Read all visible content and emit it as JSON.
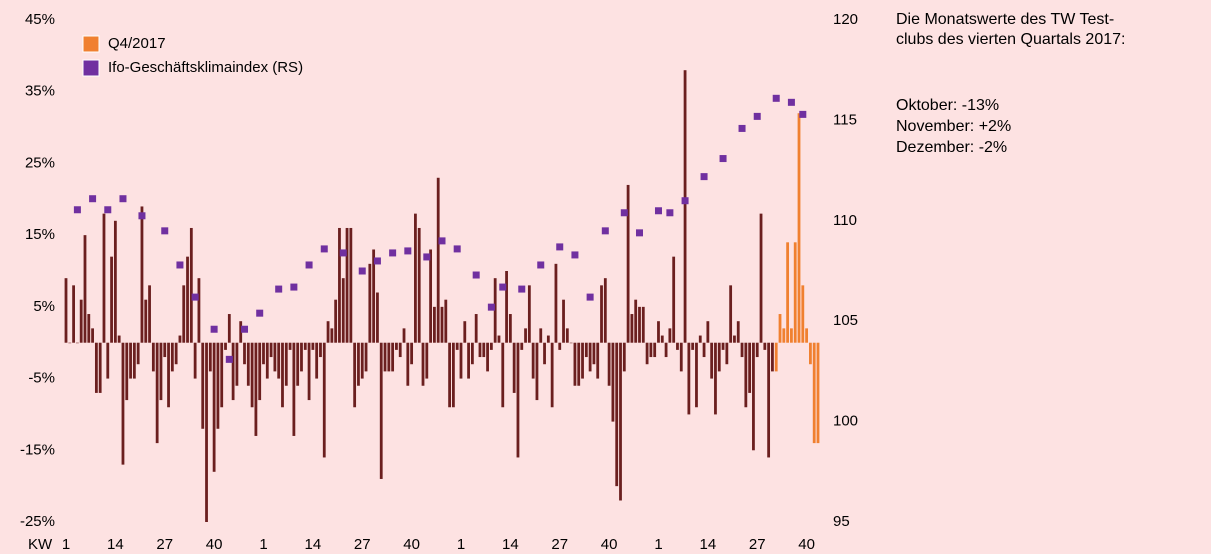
{
  "chart_data": {
    "type": "bar",
    "x_label": "KW",
    "categories": [
      "1",
      null,
      null,
      null,
      null,
      null,
      null,
      null,
      null,
      null,
      null,
      null,
      null,
      "14",
      null,
      null,
      null,
      null,
      null,
      null,
      null,
      null,
      null,
      null,
      null,
      null,
      "27",
      null,
      null,
      null,
      null,
      null,
      null,
      null,
      null,
      null,
      null,
      null,
      null,
      "40",
      null,
      null,
      null,
      null,
      null,
      null,
      null,
      null,
      null,
      null,
      null,
      null,
      "1",
      null,
      null,
      null,
      null,
      null,
      null,
      null,
      null,
      null,
      null,
      null,
      null,
      "14",
      null,
      null,
      null,
      null,
      null,
      null,
      null,
      null,
      null,
      null,
      null,
      null,
      "27",
      null,
      null,
      null,
      null,
      null,
      null,
      null,
      null,
      null,
      null,
      null,
      null,
      "40",
      null,
      null,
      null,
      null,
      null,
      null,
      null,
      null,
      null,
      null,
      null,
      null,
      "1",
      null,
      null,
      null,
      null,
      null,
      null,
      null,
      null,
      null,
      null,
      null,
      null,
      "14",
      null,
      null,
      null,
      null,
      null,
      null,
      null,
      null,
      null,
      null,
      null,
      null,
      "27",
      null,
      null,
      null,
      null,
      null,
      null,
      null,
      null,
      null,
      null,
      null,
      null,
      "40",
      null,
      null,
      null,
      null,
      null,
      null,
      null,
      null,
      null,
      null,
      null,
      null,
      "1",
      null,
      null,
      null,
      null,
      null,
      null,
      null,
      null,
      null,
      null,
      null,
      null,
      "14",
      null,
      null,
      null,
      null,
      null,
      null,
      null,
      null,
      null,
      null,
      null,
      null,
      "27",
      null,
      null,
      null,
      null,
      null,
      null,
      null,
      null,
      null,
      null,
      null,
      null,
      "40",
      null,
      null,
      null
    ],
    "series": [
      {
        "type": "bar",
        "color": "#6b1f1f",
        "values": [
          9,
          0,
          8,
          0,
          6,
          15,
          4,
          2,
          -7,
          -7,
          18,
          -5,
          12,
          17,
          1,
          -17,
          -8,
          -5,
          -5,
          -3,
          19,
          6,
          8,
          -4,
          -14,
          -8,
          -2,
          -9,
          -4,
          -3,
          1,
          8,
          12,
          16,
          -5,
          9,
          -12,
          -25,
          -4,
          -18,
          -12,
          -9,
          -1,
          4,
          -8,
          -6,
          3,
          -3,
          -6,
          -9,
          -13,
          -8,
          -3,
          -5,
          -2,
          -4,
          -5,
          -9,
          -6,
          -1,
          -13,
          -6,
          -4,
          -1,
          -8,
          -1,
          -5,
          -2,
          -16,
          3,
          2,
          6,
          16,
          9,
          16,
          16,
          -9,
          -6,
          -5,
          -4,
          11,
          13,
          7,
          -19,
          -4,
          -4,
          -4,
          -1,
          -2,
          2,
          -6,
          -3,
          18,
          16,
          -6,
          -5,
          13,
          5,
          23,
          5,
          6,
          -9,
          -9,
          -1,
          -5,
          3,
          -5,
          -3,
          4,
          -2,
          -2,
          -4,
          -1,
          9,
          1,
          -9,
          10,
          4,
          -7,
          -16,
          -1,
          2,
          8,
          -5,
          -8,
          2,
          -3,
          1,
          -9,
          11,
          -1,
          6,
          2,
          0,
          -6,
          -6,
          -5,
          -2,
          -4,
          -3,
          -5,
          8,
          9,
          -6,
          -11,
          -20,
          -22,
          -4,
          22,
          4,
          6,
          5,
          5,
          -3,
          -2,
          -2,
          3,
          1,
          -2,
          2,
          12,
          -1,
          -4,
          38,
          -10,
          -1,
          -9,
          1,
          -2,
          3,
          -5,
          -10,
          -4,
          -1,
          -3,
          8,
          1,
          3,
          -2,
          -9,
          -7,
          -15,
          -2,
          18,
          -1,
          -16,
          -4,
          null,
          null,
          null,
          null,
          null,
          null,
          null,
          null,
          null,
          null,
          null,
          null
        ]
      },
      {
        "type": "bar",
        "name": "Q4/2017",
        "color": "#f08030",
        "values": [
          null,
          null,
          null,
          null,
          null,
          null,
          null,
          null,
          null,
          null,
          null,
          null,
          null,
          null,
          null,
          null,
          null,
          null,
          null,
          null,
          null,
          null,
          null,
          null,
          null,
          null,
          null,
          null,
          null,
          null,
          null,
          null,
          null,
          null,
          null,
          null,
          null,
          null,
          null,
          null,
          null,
          null,
          null,
          null,
          null,
          null,
          null,
          null,
          null,
          null,
          null,
          null,
          null,
          null,
          null,
          null,
          null,
          null,
          null,
          null,
          null,
          null,
          null,
          null,
          null,
          null,
          null,
          null,
          null,
          null,
          null,
          null,
          null,
          null,
          null,
          null,
          null,
          null,
          null,
          null,
          null,
          null,
          null,
          null,
          null,
          null,
          null,
          null,
          null,
          null,
          null,
          null,
          null,
          null,
          null,
          null,
          null,
          null,
          null,
          null,
          null,
          null,
          null,
          null,
          null,
          null,
          null,
          null,
          null,
          null,
          null,
          null,
          null,
          null,
          null,
          null,
          null,
          null,
          null,
          null,
          null,
          null,
          null,
          null,
          null,
          null,
          null,
          null,
          null,
          null,
          null,
          null,
          null,
          null,
          null,
          null,
          null,
          null,
          null,
          null,
          null,
          null,
          null,
          null,
          null,
          null,
          null,
          null,
          null,
          null,
          null,
          null,
          null,
          null,
          null,
          null,
          null,
          null,
          null,
          null,
          null,
          null,
          null,
          null,
          null,
          null,
          null,
          null,
          null,
          null,
          null,
          null,
          null,
          null,
          null,
          null,
          null,
          null,
          null,
          null,
          null,
          null,
          null,
          null,
          null,
          null,
          null,
          -4,
          4,
          2,
          14,
          2,
          14,
          32,
          8,
          2,
          -3,
          -14,
          -14
        ]
      },
      {
        "type": "scatter",
        "name": "Ifo-Geschäftsklimaindex (RS)",
        "color": "#7030a0",
        "axis": "y2",
        "values": [
          null,
          null,
          null,
          110.55,
          null,
          null,
          null,
          111.1,
          null,
          null,
          null,
          110.55,
          null,
          null,
          null,
          111.1,
          null,
          null,
          null,
          null,
          110.25,
          null,
          null,
          null,
          null,
          null,
          109.5,
          null,
          null,
          null,
          107.8,
          null,
          null,
          null,
          106.2,
          null,
          null,
          null,
          null,
          104.6,
          null,
          null,
          null,
          103.1,
          null,
          null,
          null,
          104.6,
          null,
          null,
          null,
          105.4,
          null,
          null,
          null,
          null,
          106.6,
          null,
          null,
          null,
          106.7,
          null,
          null,
          null,
          107.8,
          null,
          null,
          null,
          108.6,
          null,
          null,
          null,
          null,
          108.4,
          null,
          null,
          null,
          null,
          107.5,
          null,
          null,
          null,
          108.0,
          null,
          null,
          null,
          108.4,
          null,
          null,
          null,
          108.5,
          null,
          null,
          null,
          null,
          108.2,
          null,
          null,
          null,
          109.0,
          null,
          null,
          null,
          108.6,
          null,
          null,
          null,
          null,
          107.3,
          null,
          null,
          null,
          105.7,
          null,
          null,
          106.7,
          null,
          null,
          null,
          null,
          106.6,
          null,
          null,
          null,
          null,
          107.8,
          null,
          null,
          null,
          null,
          108.7,
          null,
          null,
          null,
          108.3,
          null,
          null,
          null,
          106.2,
          null,
          null,
          null,
          109.5,
          null,
          null,
          null,
          null,
          110.4,
          null,
          null,
          null,
          109.4,
          null,
          null,
          null,
          null,
          110.5,
          null,
          null,
          110.4,
          null,
          null,
          null,
          111.0,
          null,
          null,
          null,
          null,
          112.2,
          null,
          null,
          null,
          null,
          113.1,
          null,
          null,
          null,
          null,
          114.6,
          null,
          null,
          null,
          115.2,
          null,
          null,
          null,
          null,
          116.1,
          null,
          null,
          null,
          115.9,
          null,
          null,
          115.3,
          null,
          null,
          null,
          null
        ]
      }
    ],
    "ylim": [
      -25,
      45
    ],
    "yticks": [
      {
        "value": 45,
        "label": "45%"
      },
      {
        "value": 35,
        "label": "35%"
      },
      {
        "value": 25,
        "label": "25%"
      },
      {
        "value": 15,
        "label": "15%"
      },
      {
        "value": 5,
        "label": "5%"
      },
      {
        "value": -5,
        "label": "-5%"
      },
      {
        "value": -15,
        "label": "-15%"
      },
      {
        "value": -25,
        "label": "-25%"
      }
    ],
    "y2lim": [
      95,
      120
    ],
    "y2ticks": [
      120,
      115,
      110,
      105,
      100,
      95
    ],
    "legend": "top-left",
    "note": [
      "Die Monatswerte des TW Test-",
      "clubs des vierten Quartals 2017:"
    ],
    "note_items": [
      "Oktober: -13%",
      "November: +2%",
      "Dezember: -2%"
    ]
  }
}
